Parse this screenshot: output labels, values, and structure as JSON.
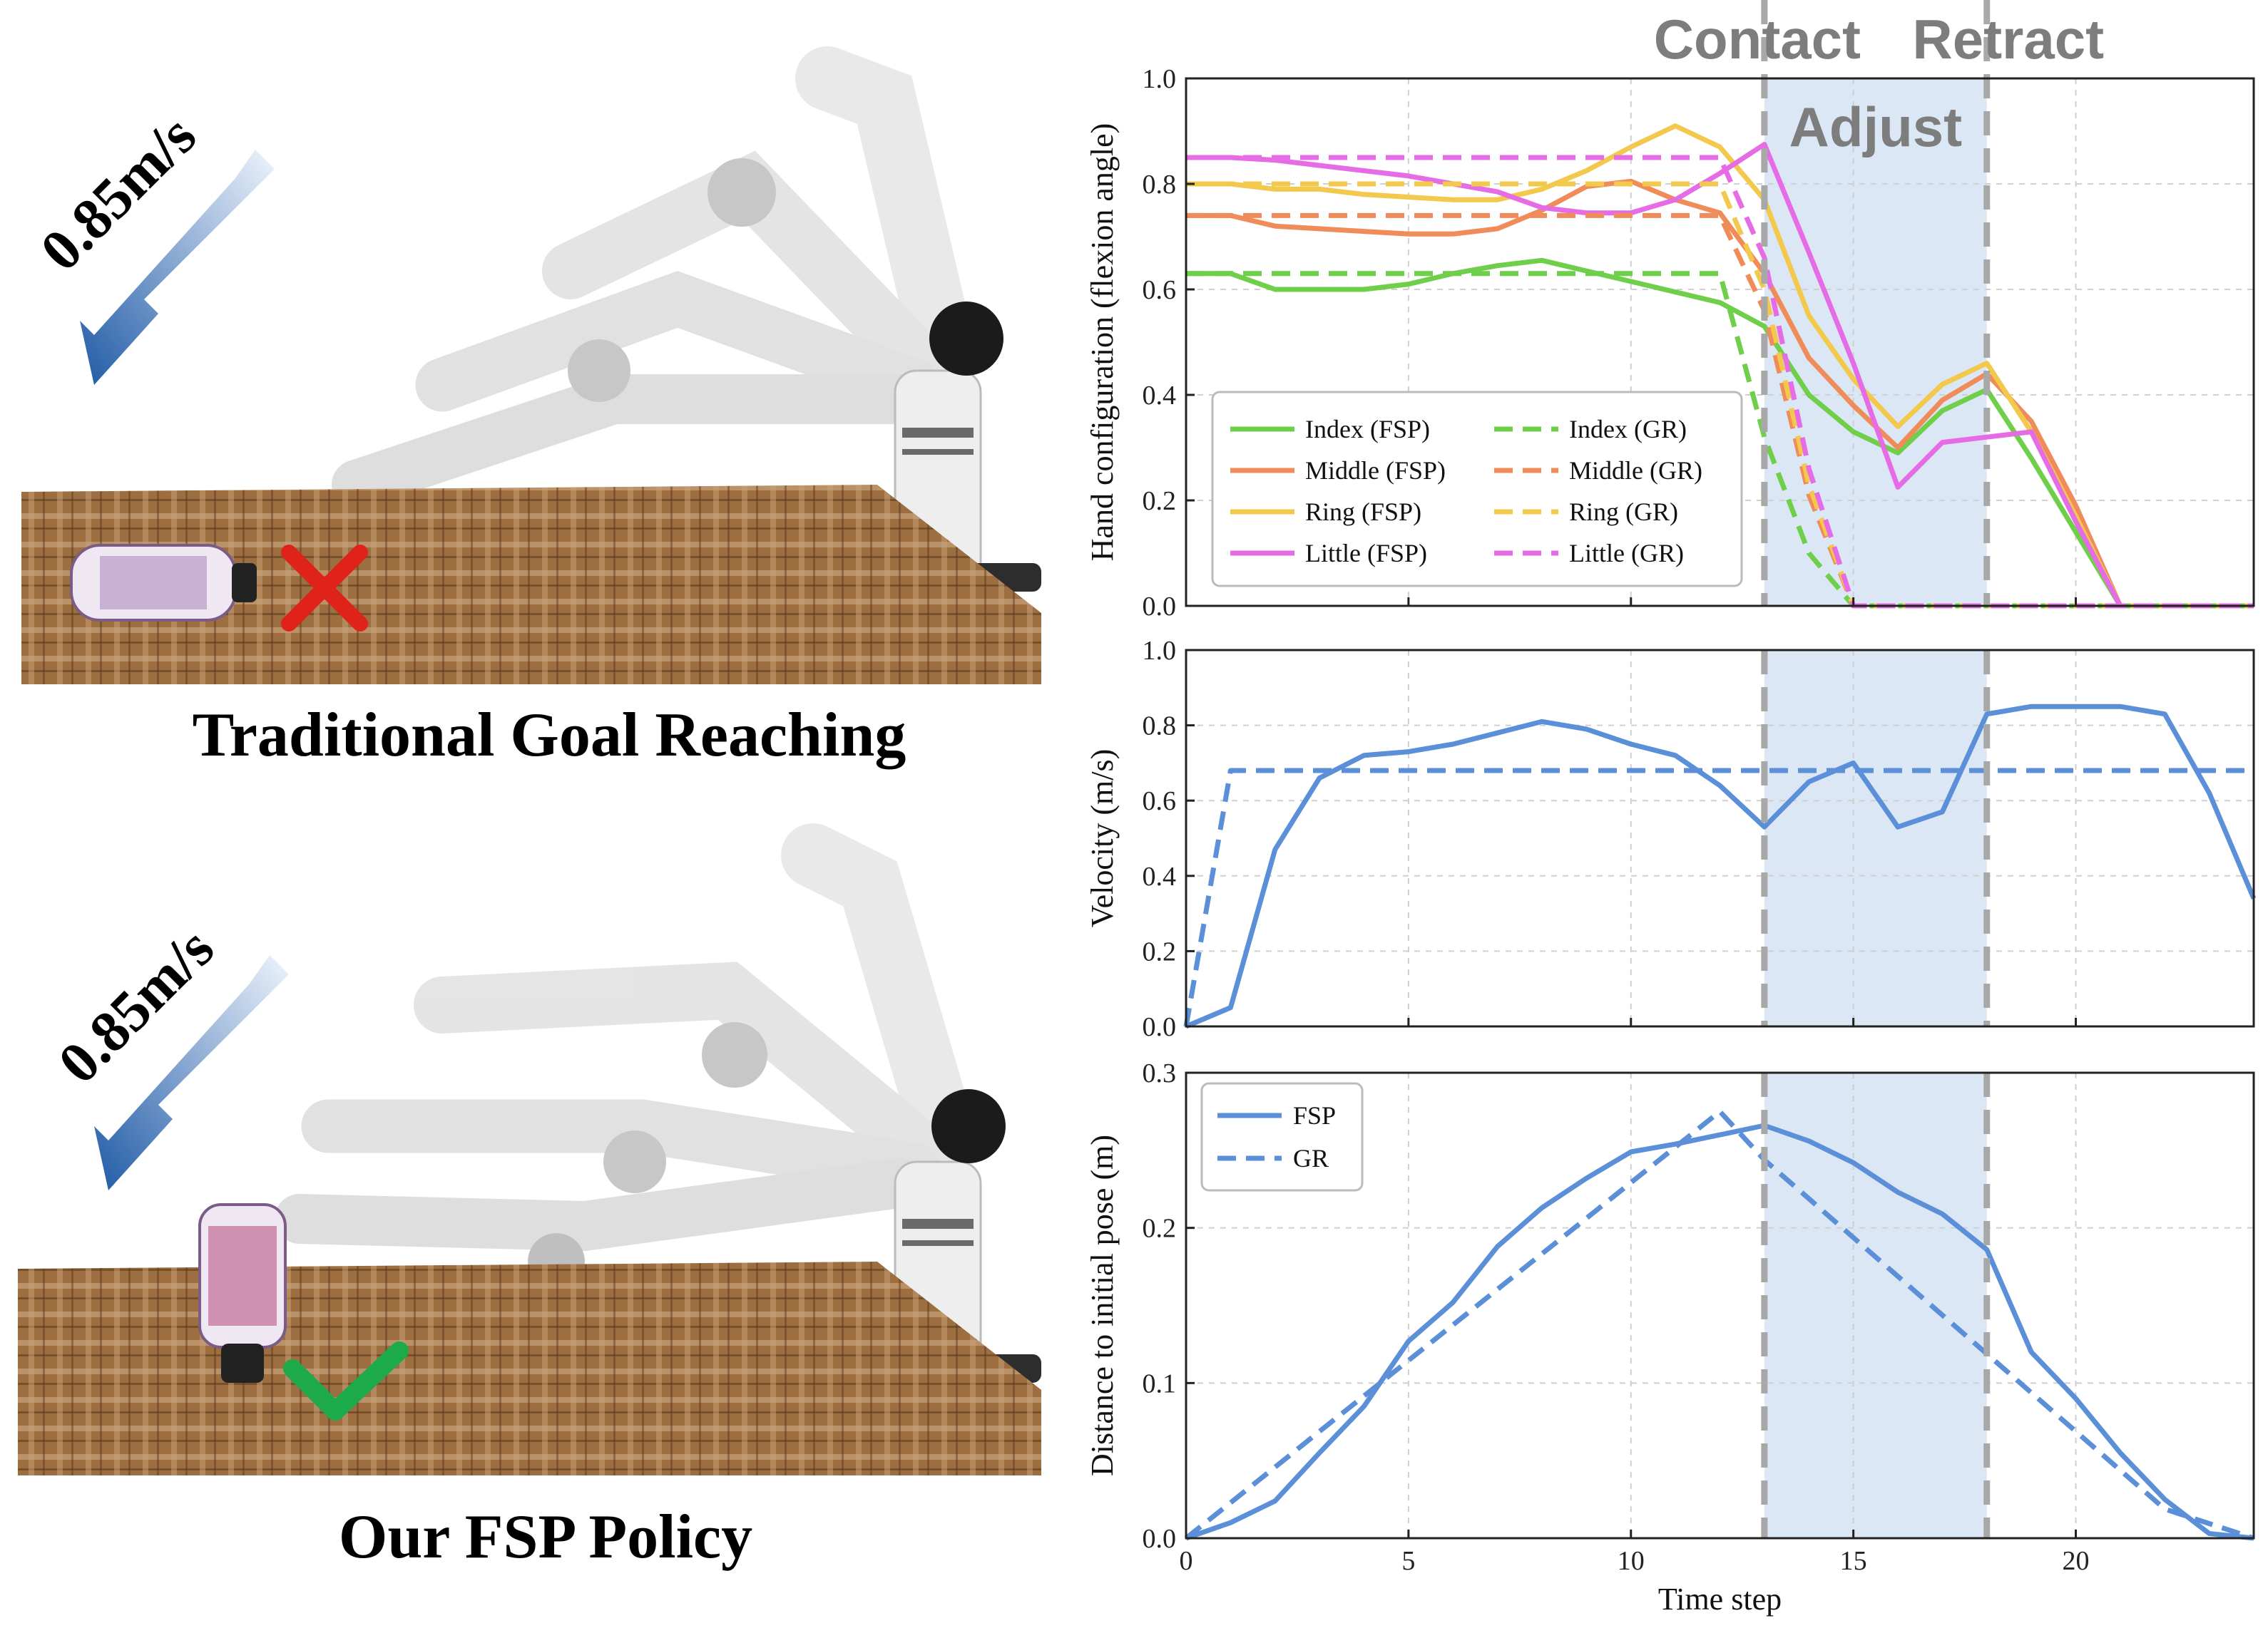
{
  "panels": {
    "top_caption": "Traditional Goal Reaching",
    "bottom_caption": "Our FSP Policy",
    "speed_label": "0.85m/s",
    "failure_icon": "cross-icon",
    "success_icon": "check-icon",
    "colors": {
      "arrow_dark": "#1f5aa6",
      "arrow_light": "#e8f0fb",
      "cross": "#e0231a",
      "check": "#1daa4a",
      "cloth": "#9a6d3e"
    }
  },
  "phases": {
    "labels": [
      "Contact",
      "Adjust",
      "Retract"
    ],
    "contact_step": 13,
    "retract_step": 18,
    "shade_color": "#dbe7f5",
    "line_color": "#a8a8a8"
  },
  "chart_data": [
    {
      "type": "line",
      "title": "",
      "ylabel": "Hand configuration (flexion angle)",
      "xlabel": "",
      "xlim": [
        0,
        24
      ],
      "ylim": [
        0,
        1.0
      ],
      "yticks": [
        "0.0",
        "0.2",
        "0.4",
        "0.6",
        "0.8",
        "1.0"
      ],
      "grid": true,
      "legend_position": "lower-left",
      "x": [
        0,
        1,
        2,
        3,
        4,
        5,
        6,
        7,
        8,
        9,
        10,
        11,
        12,
        13,
        14,
        15,
        16,
        17,
        18,
        19,
        20,
        21,
        22,
        23,
        24
      ],
      "series": [
        {
          "name": "Index (FSP)",
          "color": "#6fcf4b",
          "dash": false,
          "values": [
            0.63,
            0.63,
            0.6,
            0.6,
            0.6,
            0.61,
            0.63,
            0.645,
            0.655,
            0.635,
            0.615,
            0.595,
            0.575,
            0.53,
            0.4,
            0.33,
            0.29,
            0.37,
            0.41,
            0.28,
            0.14,
            0.0,
            0.0,
            0.0,
            0.0
          ]
        },
        {
          "name": "Middle (FSP)",
          "color": "#f08c5a",
          "dash": false,
          "values": [
            0.74,
            0.74,
            0.72,
            0.715,
            0.71,
            0.705,
            0.705,
            0.715,
            0.75,
            0.795,
            0.805,
            0.77,
            0.745,
            0.63,
            0.47,
            0.38,
            0.3,
            0.39,
            0.44,
            0.35,
            0.19,
            0.0,
            0.0,
            0.0,
            0.0
          ]
        },
        {
          "name": "Ring (FSP)",
          "color": "#f2c94c",
          "dash": false,
          "values": [
            0.8,
            0.8,
            0.79,
            0.79,
            0.78,
            0.775,
            0.77,
            0.77,
            0.79,
            0.825,
            0.87,
            0.91,
            0.87,
            0.77,
            0.55,
            0.43,
            0.34,
            0.42,
            0.46,
            0.33,
            0.17,
            0.0,
            0.0,
            0.0,
            0.0
          ]
        },
        {
          "name": "Little (FSP)",
          "color": "#e56ce5",
          "dash": false,
          "values": [
            0.85,
            0.85,
            0.845,
            0.835,
            0.825,
            0.815,
            0.8,
            0.785,
            0.755,
            0.745,
            0.745,
            0.77,
            0.82,
            0.875,
            0.67,
            0.46,
            0.225,
            0.31,
            0.32,
            0.33,
            0.16,
            0.0,
            0.0,
            0.0,
            0.0
          ]
        },
        {
          "name": "Index (GR)",
          "color": "#6fcf4b",
          "dash": true,
          "values": [
            0.63,
            0.63,
            0.63,
            0.63,
            0.63,
            0.63,
            0.63,
            0.63,
            0.63,
            0.63,
            0.63,
            0.63,
            0.63,
            0.32,
            0.1,
            0.0,
            0.0,
            0.0,
            0.0,
            0.0,
            0.0,
            0.0,
            0.0,
            0.0,
            0.0
          ]
        },
        {
          "name": "Middle (GR)",
          "color": "#f08c5a",
          "dash": true,
          "values": [
            0.74,
            0.74,
            0.74,
            0.74,
            0.74,
            0.74,
            0.74,
            0.74,
            0.74,
            0.74,
            0.74,
            0.74,
            0.74,
            0.56,
            0.21,
            0.0,
            0.0,
            0.0,
            0.0,
            0.0,
            0.0,
            0.0,
            0.0,
            0.0,
            0.0
          ]
        },
        {
          "name": "Ring (GR)",
          "color": "#f2c94c",
          "dash": true,
          "values": [
            0.8,
            0.8,
            0.8,
            0.8,
            0.8,
            0.8,
            0.8,
            0.8,
            0.8,
            0.8,
            0.8,
            0.8,
            0.8,
            0.6,
            0.23,
            0.0,
            0.0,
            0.0,
            0.0,
            0.0,
            0.0,
            0.0,
            0.0,
            0.0,
            0.0
          ]
        },
        {
          "name": "Little (GR)",
          "color": "#e56ce5",
          "dash": true,
          "values": [
            0.85,
            0.85,
            0.85,
            0.85,
            0.85,
            0.85,
            0.85,
            0.85,
            0.85,
            0.85,
            0.85,
            0.85,
            0.85,
            0.66,
            0.26,
            0.0,
            0.0,
            0.0,
            0.0,
            0.0,
            0.0,
            0.0,
            0.0,
            0.0,
            0.0
          ]
        }
      ]
    },
    {
      "type": "line",
      "title": "",
      "ylabel": "Velocity (m/s)",
      "xlabel": "",
      "xlim": [
        0,
        24
      ],
      "ylim": [
        0,
        1.0
      ],
      "yticks": [
        "0.0",
        "0.2",
        "0.4",
        "0.6",
        "0.8",
        "1.0"
      ],
      "grid": true,
      "x": [
        0,
        1,
        2,
        3,
        4,
        5,
        6,
        7,
        8,
        9,
        10,
        11,
        12,
        13,
        14,
        15,
        16,
        17,
        18,
        19,
        20,
        21,
        22,
        23,
        24
      ],
      "series": [
        {
          "name": "FSP",
          "color": "#5b8fd8",
          "dash": false,
          "values": [
            0.0,
            0.05,
            0.47,
            0.66,
            0.72,
            0.73,
            0.75,
            0.78,
            0.81,
            0.79,
            0.75,
            0.72,
            0.64,
            0.53,
            0.65,
            0.7,
            0.53,
            0.57,
            0.83,
            0.85,
            0.85,
            0.85,
            0.83,
            0.62,
            0.34
          ]
        },
        {
          "name": "GR",
          "color": "#5b8fd8",
          "dash": true,
          "values": [
            0.0,
            0.68,
            0.68,
            0.68,
            0.68,
            0.68,
            0.68,
            0.68,
            0.68,
            0.68,
            0.68,
            0.68,
            0.68,
            0.68,
            0.68,
            0.68,
            0.68,
            0.68,
            0.68,
            0.68,
            0.68,
            0.68,
            0.68,
            0.68,
            0.68
          ]
        }
      ]
    },
    {
      "type": "line",
      "title": "",
      "ylabel": "Distance to initial pose (m)",
      "xlabel": "Time step",
      "xlim": [
        0,
        24
      ],
      "ylim": [
        0,
        0.3
      ],
      "xticks": [
        "0",
        "5",
        "10",
        "15",
        "20"
      ],
      "yticks": [
        "0.0",
        "0.1",
        "0.2",
        "0.3"
      ],
      "grid": true,
      "legend_position": "upper-left",
      "x": [
        0,
        1,
        2,
        3,
        4,
        5,
        6,
        7,
        8,
        9,
        10,
        11,
        12,
        13,
        14,
        15,
        16,
        17,
        18,
        19,
        20,
        21,
        22,
        23,
        24
      ],
      "series": [
        {
          "name": "FSP",
          "color": "#5b8fd8",
          "dash": false,
          "values": [
            0.0,
            0.01,
            0.024,
            0.055,
            0.085,
            0.127,
            0.152,
            0.188,
            0.213,
            0.232,
            0.249,
            0.254,
            0.26,
            0.266,
            0.256,
            0.242,
            0.223,
            0.209,
            0.186,
            0.12,
            0.09,
            0.055,
            0.025,
            0.003,
            0.0
          ]
        },
        {
          "name": "GR",
          "color": "#5b8fd8",
          "dash": true,
          "values": [
            0.0,
            0.0229,
            0.0458,
            0.0688,
            0.0917,
            0.1146,
            0.1375,
            0.1604,
            0.1833,
            0.2062,
            0.2292,
            0.2521,
            0.275,
            0.2438,
            0.2188,
            0.1938,
            0.1688,
            0.1438,
            0.1188,
            0.0938,
            0.0688,
            0.0438,
            0.0188,
            0.0094,
            0.0
          ]
        }
      ]
    }
  ]
}
